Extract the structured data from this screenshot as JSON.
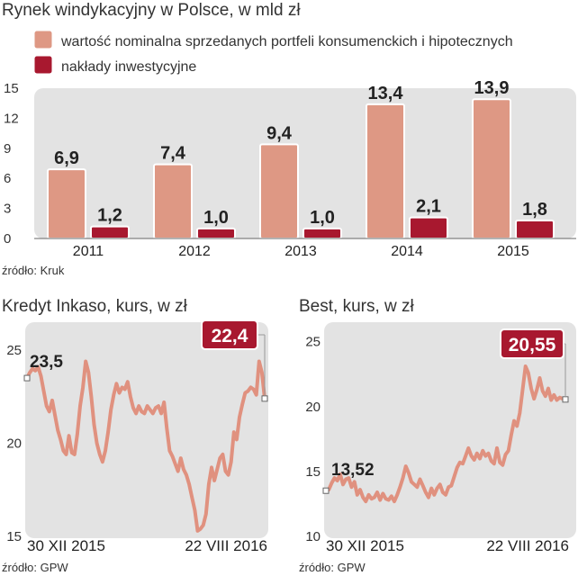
{
  "colors": {
    "panel": "#e3e3e3",
    "nominal": "#de9884",
    "invest": "#a8182f",
    "line": "#e0917f",
    "callout": "#a8182f"
  },
  "chart_data": [
    {
      "type": "bar",
      "title": "Rynek windykacyjny w Polsce, w mld zł",
      "categories": [
        "2011",
        "2012",
        "2013",
        "2014",
        "2015"
      ],
      "series": [
        {
          "name": "wartość nominalna sprzedanych portfeli konsumenckich i hipotecznych",
          "values": [
            6.9,
            7.4,
            9.4,
            13.4,
            13.9
          ],
          "labels": [
            "6,9",
            "7,4",
            "9,4",
            "13,4",
            "13,9"
          ]
        },
        {
          "name": "nakłady inwestycyjne",
          "values": [
            1.2,
            1.0,
            1.0,
            2.1,
            1.8
          ],
          "labels": [
            "1,2",
            "1,0",
            "1,0",
            "2,1",
            "1,8"
          ]
        }
      ],
      "yticks": [
        "0",
        "3",
        "6",
        "9",
        "12",
        "15"
      ],
      "ylim": [
        0,
        15
      ],
      "grid": false,
      "legend": "top",
      "source": "źródło:  Kruk"
    },
    {
      "type": "line",
      "title": "Kredyt Inkaso, kurs, w zł",
      "x_start": "30 XII 2015",
      "x_end": "22 VIII 2016",
      "yticks": [
        "15",
        "20",
        "25"
      ],
      "ylim": [
        15,
        26.5
      ],
      "first_label": "23,5",
      "last_label": "22,4",
      "source": "źródło: GPW",
      "values": [
        23.5,
        23.8,
        24.0,
        23.9,
        24.1,
        23.6,
        22.8,
        22.0,
        21.7,
        22.3,
        21.5,
        20.7,
        20.2,
        19.6,
        19.4,
        20.4,
        19.5,
        19.4,
        20.5,
        22.0,
        23.0,
        24.4,
        23.8,
        22.5,
        21.0,
        20.0,
        19.4,
        19.0,
        19.6,
        20.6,
        21.8,
        22.6,
        23.2,
        22.7,
        23.0,
        22.9,
        23.3,
        22.5,
        21.9,
        21.6,
        22.0,
        21.7,
        21.6,
        22.0,
        21.8,
        21.6,
        21.9,
        22.0,
        21.6,
        22.2,
        20.8,
        19.6,
        19.3,
        18.9,
        18.5,
        19.2,
        18.6,
        18.3,
        17.8,
        17.1,
        16.4,
        15.3,
        15.4,
        15.6,
        16.2,
        17.8,
        18.7,
        18.0,
        18.6,
        19.2,
        19.4,
        18.5,
        18.3,
        19.0,
        20.6,
        20.2,
        21.4,
        22.1,
        22.7,
        22.8,
        23.0,
        22.9,
        22.6,
        24.4,
        23.8,
        22.4
      ]
    },
    {
      "type": "line",
      "title": "Best, kurs, w zł",
      "x_start": "30 XII 2015",
      "x_end": "22 VIII 2016",
      "yticks": [
        "10",
        "15",
        "20",
        "25"
      ],
      "ylim": [
        10,
        26.5
      ],
      "first_label": "13,52",
      "last_label": "20,55",
      "source": "źródło: GPW",
      "values": [
        13.52,
        13.6,
        14.1,
        14.5,
        14.3,
        14.8,
        14.0,
        14.4,
        14.5,
        13.8,
        14.2,
        13.2,
        13.6,
        13.0,
        12.7,
        13.2,
        12.9,
        13.0,
        13.4,
        12.8,
        13.3,
        12.9,
        12.8,
        13.1,
        12.7,
        13.2,
        13.8,
        14.5,
        15.4,
        14.9,
        14.2,
        14.0,
        13.8,
        14.4,
        13.9,
        13.4,
        13.0,
        13.7,
        13.2,
        13.7,
        14.0,
        13.4,
        13.2,
        13.8,
        13.9,
        14.6,
        15.3,
        15.7,
        15.6,
        16.2,
        16.8,
        16.2,
        15.9,
        16.4,
        16.0,
        16.6,
        16.2,
        16.4,
        15.8,
        15.6,
        16.8,
        15.7,
        15.5,
        16.3,
        16.6,
        17.8,
        18.9,
        18.5,
        19.5,
        21.3,
        23.1,
        22.6,
        21.4,
        20.6,
        21.3,
        22.2,
        21.2,
        20.8,
        21.4,
        20.5,
        20.9,
        20.5,
        20.7,
        20.6,
        20.55
      ]
    }
  ]
}
